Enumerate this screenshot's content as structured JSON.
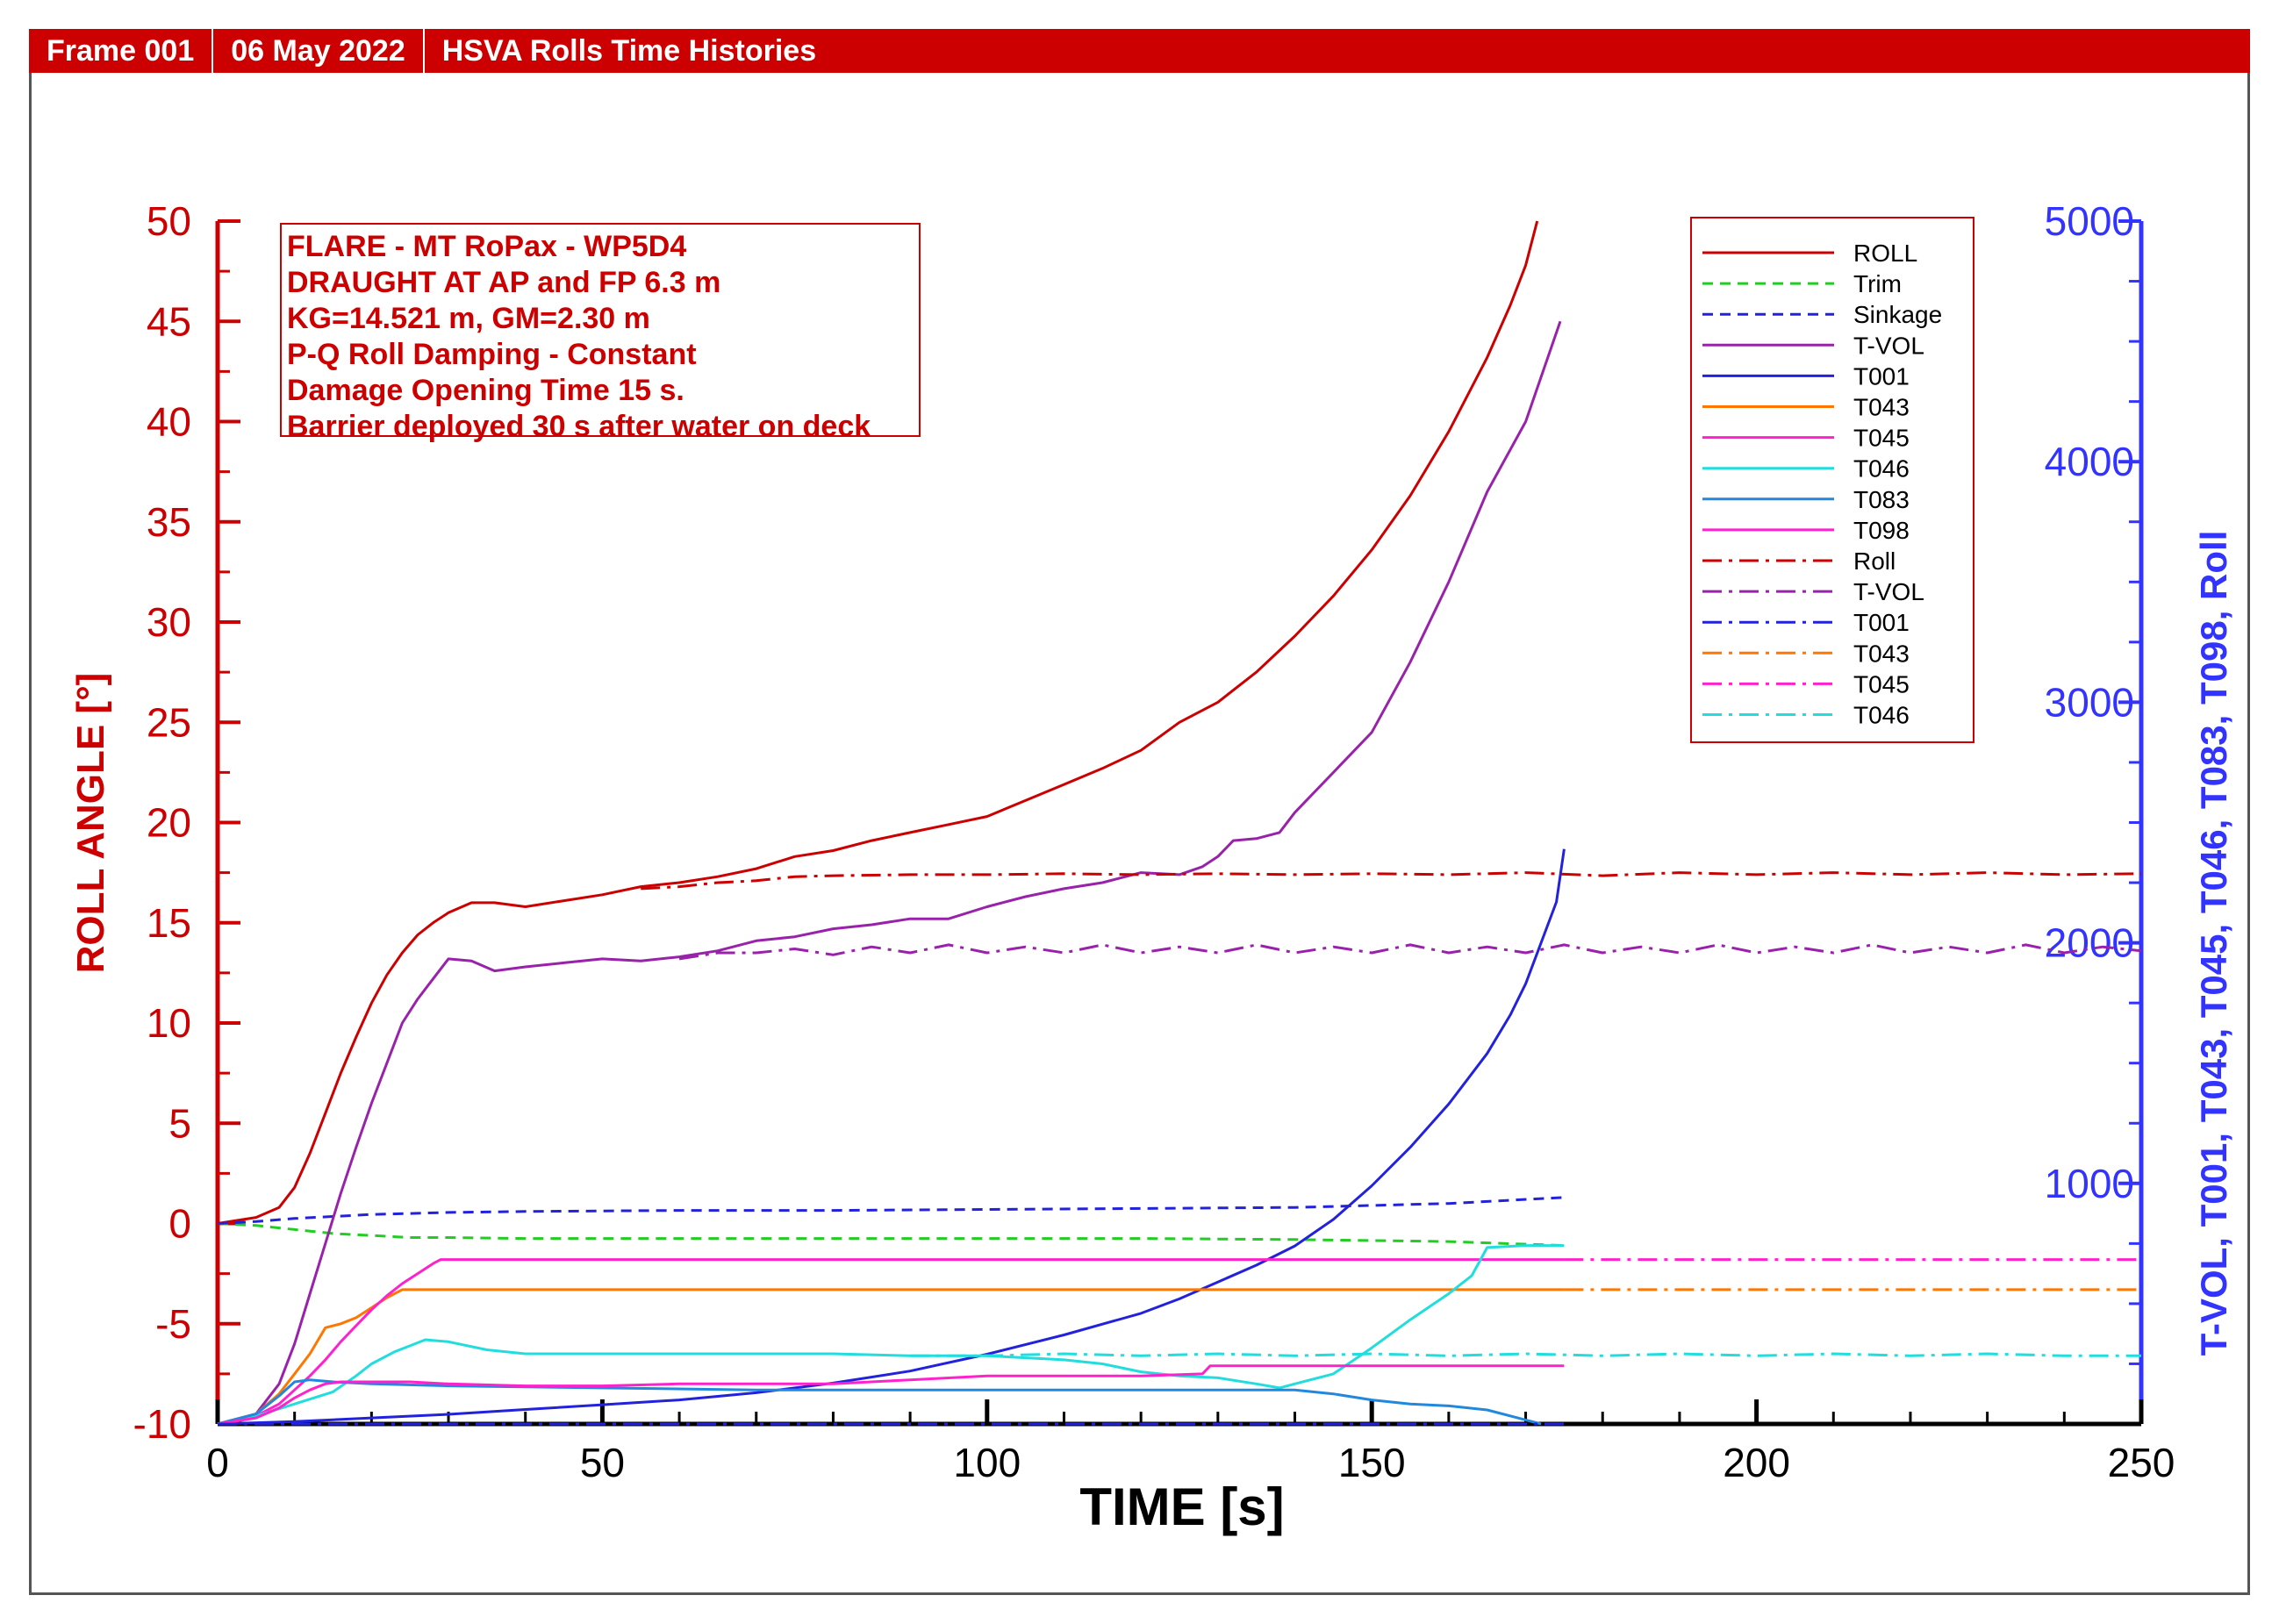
{
  "header": {
    "frame": "Frame 001",
    "date": "06 May 2022",
    "title": "HSVA Rolls Time Histories"
  },
  "annotation_lines": [
    "FLARE - MT RoPax - WP5D4",
    "DRAUGHT AT AP and FP 6.3 m",
    "KG=14.521 m, GM=2.30 m",
    "P-Q Roll Damping - Constant",
    "Damage Opening Time 15 s.",
    "Barrier deployed 30 s after water on deck"
  ],
  "colors": {
    "red": "#cc0000",
    "blue": "#3333ff",
    "header_bg": "#cc0000"
  },
  "chart_data": {
    "type": "line",
    "xlabel": "TIME [s]",
    "ylabel": "ROLL ANGLE [°]",
    "y2label": "T-VOL, T001, T043, T045, T046, T083, T098, Roll",
    "xlim": [
      0,
      250
    ],
    "ylim": [
      -10,
      50
    ],
    "y2lim": [
      0,
      5000
    ],
    "xticks": [
      0,
      50,
      100,
      150,
      200,
      250
    ],
    "yticks": [
      -10,
      -5,
      0,
      5,
      10,
      15,
      20,
      25,
      30,
      35,
      40,
      45,
      50
    ],
    "y2ticks": [
      1000,
      2000,
      3000,
      4000,
      5000
    ],
    "legend_position": "top-right",
    "series": [
      {
        "name": "ROLL",
        "axis": "left",
        "color": "#cc0000",
        "dash": "solid",
        "x": [
          0,
          5,
          8,
          10,
          12,
          14,
          16,
          18,
          20,
          22,
          24,
          26,
          28,
          30,
          33,
          36,
          40,
          45,
          50,
          55,
          60,
          65,
          70,
          75,
          80,
          85,
          90,
          95,
          100,
          105,
          110,
          115,
          120,
          125,
          130,
          135,
          140,
          145,
          150,
          155,
          160,
          165,
          168,
          170,
          171.5
        ],
        "y": [
          0,
          0.3,
          0.8,
          1.8,
          3.5,
          5.5,
          7.5,
          9.3,
          11,
          12.4,
          13.5,
          14.4,
          15,
          15.5,
          16,
          16,
          15.8,
          16.1,
          16.4,
          16.8,
          17,
          17.3,
          17.7,
          18.3,
          18.6,
          19.1,
          19.5,
          19.9,
          20.3,
          21.1,
          21.9,
          22.7,
          23.6,
          25,
          26,
          27.5,
          29.3,
          31.3,
          33.6,
          36.3,
          39.5,
          43.2,
          45.8,
          47.8,
          50
        ]
      },
      {
        "name": "Trim",
        "axis": "left",
        "color": "#22cc22",
        "dash": "short",
        "x": [
          0,
          5,
          10,
          15,
          20,
          25,
          30,
          40,
          50,
          60,
          80,
          100,
          120,
          140,
          160,
          175
        ],
        "y": [
          0,
          -0.1,
          -0.3,
          -0.5,
          -0.6,
          -0.7,
          -0.7,
          -0.75,
          -0.75,
          -0.75,
          -0.75,
          -0.75,
          -0.75,
          -0.8,
          -0.9,
          -1.1
        ]
      },
      {
        "name": "Sinkage",
        "axis": "left",
        "color": "#2222dd",
        "dash": "short",
        "x": [
          0,
          5,
          10,
          15,
          20,
          25,
          30,
          40,
          60,
          80,
          100,
          120,
          140,
          160,
          175
        ],
        "y": [
          0,
          0.1,
          0.25,
          0.35,
          0.45,
          0.5,
          0.55,
          0.6,
          0.65,
          0.65,
          0.7,
          0.75,
          0.8,
          1.0,
          1.3
        ]
      },
      {
        "name": "T-VOL",
        "axis": "left",
        "color": "#9922aa",
        "dash": "solid",
        "x": [
          0,
          5,
          8,
          10,
          12,
          14,
          16,
          18,
          20,
          22,
          24,
          26,
          28,
          30,
          33,
          36,
          40,
          45,
          50,
          55,
          60,
          65,
          70,
          75,
          80,
          85,
          90,
          95,
          100,
          105,
          110,
          115,
          120,
          125,
          128,
          130,
          132,
          135,
          138,
          140,
          145,
          150,
          155,
          160,
          165,
          170,
          174.5
        ],
        "y": [
          -10,
          -9.5,
          -8,
          -6,
          -3.5,
          -1,
          1.5,
          3.8,
          6,
          8,
          10,
          11.2,
          12.2,
          13.2,
          13.1,
          12.6,
          12.8,
          13,
          13.2,
          13.1,
          13.3,
          13.6,
          14.1,
          14.3,
          14.7,
          14.9,
          15.2,
          15.2,
          15.8,
          16.3,
          16.7,
          17,
          17.5,
          17.4,
          17.8,
          18.3,
          19.1,
          19.2,
          19.5,
          20.5,
          22.5,
          24.5,
          28,
          32,
          36.5,
          40,
          45
        ]
      },
      {
        "name": "T001",
        "axis": "right",
        "color": "#2222dd",
        "dash": "solid",
        "x": [
          0,
          10,
          20,
          30,
          40,
          50,
          60,
          70,
          80,
          90,
          100,
          110,
          120,
          125,
          130,
          135,
          140,
          145,
          150,
          155,
          160,
          165,
          168,
          170,
          172,
          174,
          175
        ],
        "y": [
          0,
          10,
          25,
          40,
          60,
          80,
          100,
          130,
          170,
          220,
          290,
          370,
          460,
          520,
          590,
          660,
          740,
          850,
          990,
          1150,
          1330,
          1540,
          1700,
          1830,
          2000,
          2170,
          2390
        ]
      },
      {
        "name": "T043",
        "axis": "left",
        "color": "#ff7700",
        "dash": "solid",
        "x": [
          0,
          5,
          8,
          10,
          12,
          14,
          16,
          18,
          20,
          22,
          24,
          26,
          30,
          50,
          100,
          150,
          175
        ],
        "y": [
          -10,
          -9.5,
          -8.5,
          -7.5,
          -6.5,
          -5.2,
          -5,
          -4.7,
          -4.2,
          -3.7,
          -3.3,
          -3.3,
          -3.3,
          -3.3,
          -3.3,
          -3.3,
          -3.3
        ]
      },
      {
        "name": "T045",
        "axis": "left",
        "color": "#ff22cc",
        "dash": "solid",
        "x": [
          0,
          5,
          8,
          10,
          12,
          14,
          16,
          18,
          20,
          22,
          24,
          26,
          28,
          29,
          40,
          60,
          100,
          150,
          175
        ],
        "y": [
          -10,
          -9.6,
          -9,
          -8.3,
          -7.6,
          -6.8,
          -5.9,
          -5.1,
          -4.3,
          -3.6,
          -3,
          -2.5,
          -2,
          -1.8,
          -1.8,
          -1.8,
          -1.8,
          -1.8,
          -1.8
        ]
      },
      {
        "name": "T046",
        "axis": "left",
        "color": "#22dddd",
        "dash": "solid",
        "x": [
          0,
          5,
          10,
          15,
          18,
          20,
          23,
          25,
          27,
          30,
          35,
          40,
          50,
          60,
          70,
          80,
          90,
          100,
          110,
          115,
          120,
          125,
          130,
          135,
          138,
          140,
          145,
          150,
          155,
          160,
          163,
          165,
          170,
          175
        ],
        "y": [
          -10,
          -9.6,
          -9,
          -8.4,
          -7.6,
          -7,
          -6.4,
          -6.1,
          -5.8,
          -5.9,
          -6.3,
          -6.5,
          -6.5,
          -6.5,
          -6.5,
          -6.5,
          -6.6,
          -6.6,
          -6.8,
          -7,
          -7.4,
          -7.6,
          -7.7,
          -8,
          -8.2,
          -8,
          -7.5,
          -6.2,
          -4.8,
          -3.5,
          -2.6,
          -1.2,
          -1.1,
          -1.1
        ]
      },
      {
        "name": "T083",
        "axis": "left",
        "color": "#2288dd",
        "dash": "solid",
        "x": [
          0,
          5,
          8,
          10,
          12,
          15,
          20,
          30,
          50,
          70,
          90,
          110,
          130,
          140,
          145,
          150,
          155,
          160,
          165,
          170,
          172
        ],
        "y": [
          -10,
          -9.5,
          -8.6,
          -7.9,
          -7.8,
          -7.9,
          -8,
          -8.1,
          -8.2,
          -8.3,
          -8.3,
          -8.3,
          -8.3,
          -8.3,
          -8.5,
          -8.8,
          -9,
          -9.1,
          -9.3,
          -9.8,
          -10
        ]
      },
      {
        "name": "T098",
        "axis": "left",
        "color": "#ff22cc",
        "dash": "solid",
        "x": [
          0,
          5,
          8,
          10,
          12,
          14,
          16,
          18,
          20,
          25,
          30,
          40,
          50,
          60,
          70,
          80,
          90,
          100,
          110,
          120,
          128,
          129,
          140,
          150,
          160,
          170,
          175
        ],
        "y": [
          -10,
          -9.7,
          -9.2,
          -8.7,
          -8.3,
          -8,
          -7.9,
          -7.9,
          -7.9,
          -7.9,
          -8,
          -8.1,
          -8.1,
          -8,
          -8,
          -8,
          -7.8,
          -7.6,
          -7.6,
          -7.6,
          -7.5,
          -7.1,
          -7.1,
          -7.1,
          -7.1,
          -7.1,
          -7.1
        ]
      },
      {
        "name": "Roll",
        "axis": "left",
        "color": "#cc0000",
        "dash": "dashdot",
        "x": [
          55,
          60,
          65,
          70,
          75,
          80,
          90,
          100,
          110,
          120,
          130,
          140,
          150,
          160,
          170,
          180,
          190,
          200,
          210,
          220,
          230,
          240,
          250
        ],
        "y": [
          16.7,
          16.8,
          17,
          17.1,
          17.3,
          17.35,
          17.4,
          17.4,
          17.45,
          17.4,
          17.45,
          17.4,
          17.45,
          17.4,
          17.5,
          17.35,
          17.5,
          17.4,
          17.5,
          17.4,
          17.5,
          17.4,
          17.45
        ]
      },
      {
        "name": "T-VOL",
        "axis": "left",
        "color": "#9922aa",
        "dash": "dashdot",
        "x": [
          60,
          65,
          70,
          75,
          80,
          85,
          90,
          95,
          100,
          105,
          110,
          115,
          120,
          125,
          130,
          135,
          140,
          145,
          150,
          155,
          160,
          165,
          170,
          175,
          180,
          185,
          190,
          195,
          200,
          205,
          210,
          215,
          220,
          225,
          230,
          235,
          240,
          245,
          250
        ],
        "y": [
          13.2,
          13.5,
          13.5,
          13.7,
          13.4,
          13.8,
          13.5,
          13.9,
          13.5,
          13.8,
          13.5,
          13.9,
          13.5,
          13.8,
          13.5,
          13.9,
          13.5,
          13.8,
          13.5,
          13.9,
          13.5,
          13.8,
          13.5,
          13.9,
          13.5,
          13.8,
          13.5,
          13.9,
          13.5,
          13.8,
          13.5,
          13.9,
          13.5,
          13.8,
          13.5,
          13.9,
          13.5,
          13.8,
          13.6
        ]
      },
      {
        "name": "T001",
        "axis": "left",
        "color": "#2222dd",
        "dash": "dashdot",
        "x": [
          0,
          50,
          100,
          150,
          175
        ],
        "y": [
          -10,
          -10,
          -10,
          -10,
          -10
        ]
      },
      {
        "name": "T043",
        "axis": "left",
        "color": "#ff7700",
        "dash": "dashdot",
        "x": [
          175,
          200,
          225,
          250
        ],
        "y": [
          -3.3,
          -3.3,
          -3.3,
          -3.3
        ]
      },
      {
        "name": "T045",
        "axis": "left",
        "color": "#ff22cc",
        "dash": "dashdot",
        "x": [
          175,
          200,
          225,
          250
        ],
        "y": [
          -1.8,
          -1.8,
          -1.8,
          -1.8
        ]
      },
      {
        "name": "T046",
        "axis": "left",
        "color": "#22dddd",
        "dash": "dashdot",
        "x": [
          90,
          100,
          110,
          120,
          130,
          140,
          150,
          160,
          170,
          180,
          190,
          200,
          210,
          220,
          230,
          240,
          250
        ],
        "y": [
          -6.6,
          -6.6,
          -6.5,
          -6.6,
          -6.5,
          -6.6,
          -6.5,
          -6.6,
          -6.5,
          -6.6,
          -6.5,
          -6.6,
          -6.5,
          -6.6,
          -6.5,
          -6.6,
          -6.6
        ]
      }
    ]
  }
}
